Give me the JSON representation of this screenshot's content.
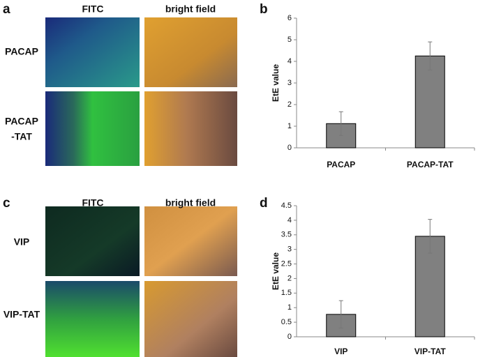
{
  "panel_labels": [
    "a",
    "b",
    "c",
    "d"
  ],
  "image_panels": [
    {
      "columns": [
        "FITC",
        "bright field"
      ],
      "rows": [
        [
          "PACAP"
        ],
        [
          "PACAP",
          "-TAT"
        ]
      ]
    },
    {
      "columns": [
        "FITC",
        "bright field"
      ],
      "rows": [
        [
          "VIP"
        ],
        [
          "VIP-TAT"
        ]
      ]
    }
  ],
  "chart_data": [
    {
      "type": "bar",
      "y_label": "EtE value",
      "categories": [
        "PACAP",
        "PACAP-TAT"
      ],
      "values": [
        1.12,
        4.25
      ],
      "errors": [
        0.55,
        0.65
      ],
      "color": "#808080",
      "ylim": [
        0,
        6
      ],
      "yticks": [
        0,
        1,
        2,
        3,
        4,
        5,
        6
      ]
    },
    {
      "type": "bar",
      "y_label": "EtE value",
      "categories": [
        "VIP",
        "VIP-TAT"
      ],
      "values": [
        0.77,
        3.45
      ],
      "errors": [
        0.47,
        0.58
      ],
      "color": "#808080",
      "ylim": [
        0,
        4.5
      ],
      "yticks": [
        0,
        0.5,
        1,
        1.5,
        2,
        2.5,
        3,
        3.5,
        4,
        4.5
      ]
    }
  ]
}
